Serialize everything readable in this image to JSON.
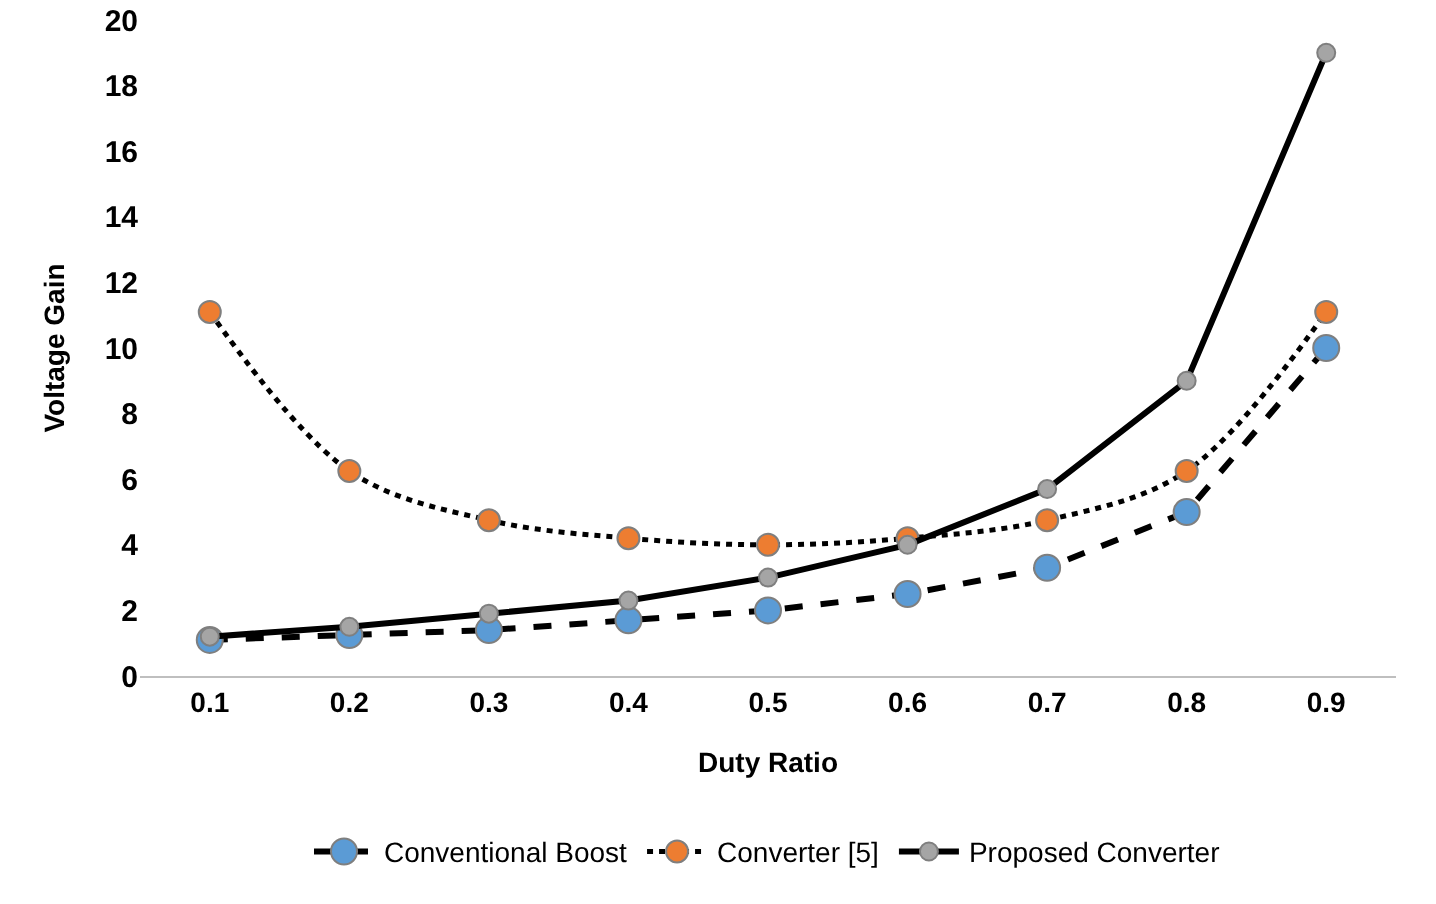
{
  "chart_data": {
    "type": "line",
    "xlabel": "Duty Ratio",
    "ylabel": "Voltage Gain",
    "categories": [
      "0.1",
      "0.2",
      "0.3",
      "0.4",
      "0.5",
      "0.6",
      "0.7",
      "0.8",
      "0.9"
    ],
    "ylim": [
      0,
      20
    ],
    "yticks": [
      0,
      2,
      4,
      6,
      8,
      10,
      12,
      14,
      16,
      18,
      20
    ],
    "grid": false,
    "legend": "bottom",
    "marker": "circle",
    "series": [
      {
        "name": "Conventional Boost",
        "color": "#5b9bd5",
        "line_style": "dashed",
        "values": [
          1.1,
          1.25,
          1.4,
          1.7,
          2,
          2.5,
          3.3,
          5,
          10
        ]
      },
      {
        "name": "Converter [5]",
        "color": "#ed7d31",
        "line_style": "dotted",
        "values": [
          11.1,
          6.25,
          4.75,
          4.2,
          4,
          4.2,
          4.75,
          6.25,
          11.1
        ]
      },
      {
        "name": "Proposed Converter",
        "color": "#a5a5a5",
        "line_style": "solid",
        "values": [
          1.2,
          1.5,
          1.9,
          2.3,
          3,
          4,
          5.7,
          9,
          19
        ]
      }
    ]
  }
}
